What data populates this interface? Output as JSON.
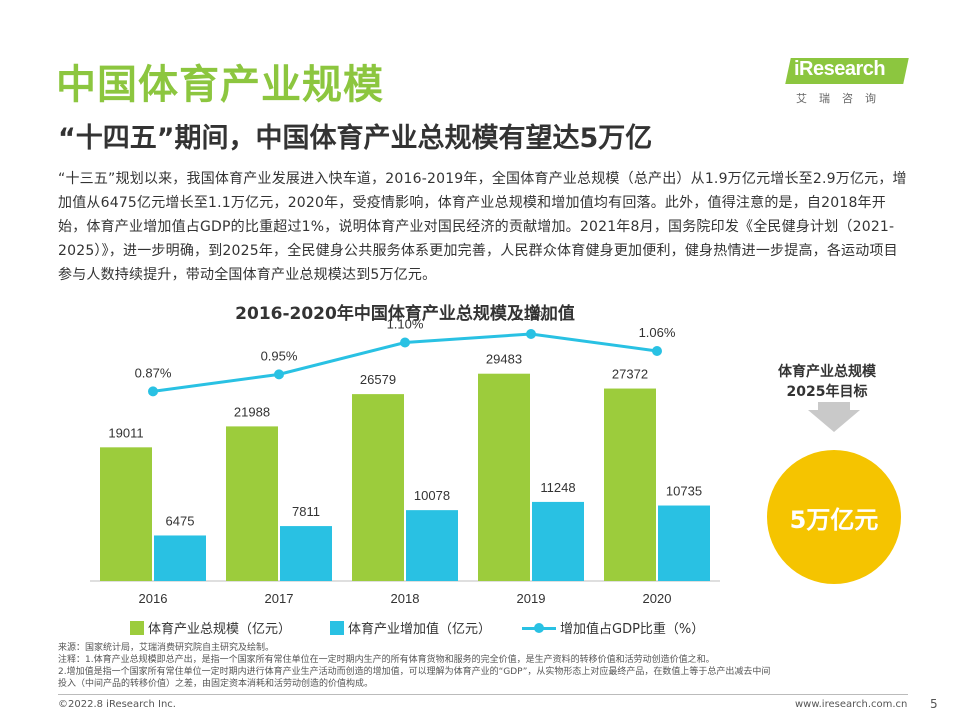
{
  "header": {
    "title": "中国体育产业规模",
    "subtitle": "“十四五”期间，中国体育产业总规模有望达5万亿"
  },
  "logo": {
    "text": "iResearch",
    "sub": "艾瑞咨询"
  },
  "intro": "“十三五”规划以来，我国体育产业发展进入快车道，2016-2019年，全国体育产业总规模（总产出）从1.9万亿元增长至2.9万亿元，增加值从6475亿元增长至1.1万亿元，2020年，受疫情影响，体育产业总规模和增加值均有回落。此外，值得注意的是，自2018年开始，体育产业增加值占GDP的比重超过1%，说明体育产业对国民经济的贡献增加。2021年8月，国务院印发《全民健身计划（2021-2025）》，进一步明确，到2025年，全民健身公共服务体系更加完善，人民群众体育健身更加便利，健身热情进一步提高，各运动项目参与人数持续提升，带动全国体育产业总规模达到5万亿元。",
  "chart_data": {
    "type": "bar",
    "title": "2016-2020年中国体育产业总规模及增加值",
    "categories": [
      "2016",
      "2017",
      "2018",
      "2019",
      "2020"
    ],
    "series": [
      {
        "name": "体育产业总规模（亿元）",
        "type": "bar",
        "color": "#9ccc3c",
        "values": [
          19011,
          21988,
          26579,
          29483,
          27372
        ]
      },
      {
        "name": "体育产业增加值（亿元）",
        "type": "bar",
        "color": "#29c1e3",
        "values": [
          6475,
          7811,
          10078,
          11248,
          10735
        ]
      },
      {
        "name": "增加值占GDP比重（%）",
        "type": "line",
        "color": "#29c1e3",
        "values": [
          0.87,
          0.95,
          1.1,
          1.14,
          1.06
        ],
        "labels": [
          "0.87%",
          "0.95%",
          "1.10%",
          "1.14%",
          "1.06%"
        ]
      }
    ],
    "ylim": [
      0,
      32000
    ],
    "grid": false,
    "legend": "bottom"
  },
  "target": {
    "title": "体育产业总规模\n2025年目标",
    "title_line1": "体育产业总规模",
    "title_line2": "2025年目标",
    "value": "5万亿元",
    "circle_color": "#f5c400"
  },
  "notes": {
    "source": "来源：国家统计局，艾瑞消费研究院自主研究及绘制。",
    "note1": "注释：1.体育产业总规模即总产出，是指一个国家所有常住单位在一定时期内生产的所有体育货物和服务的完全价值，是生产资料的转移价值和活劳动创造价值之和。",
    "note2a": "2.增加值是指一个国家所有常住单位一定时期内进行体育产业生产活动而创造的增加值，可以理解为体育产业的“GDP”，从实物形态上对应最终产品，在数值上等于总产出减去中间",
    "note2b": "投入（中间产品的转移价值）之差，由固定资本消耗和活劳动创造的价值构成。"
  },
  "footer": {
    "copyright": "©2022.8 iResearch Inc.",
    "website": "www.iresearch.com.cn",
    "page": "5"
  },
  "colors": {
    "accent": "#8cc63f",
    "bar_green": "#9ccc3c",
    "bar_blue": "#29c1e3",
    "target": "#f5c400"
  }
}
